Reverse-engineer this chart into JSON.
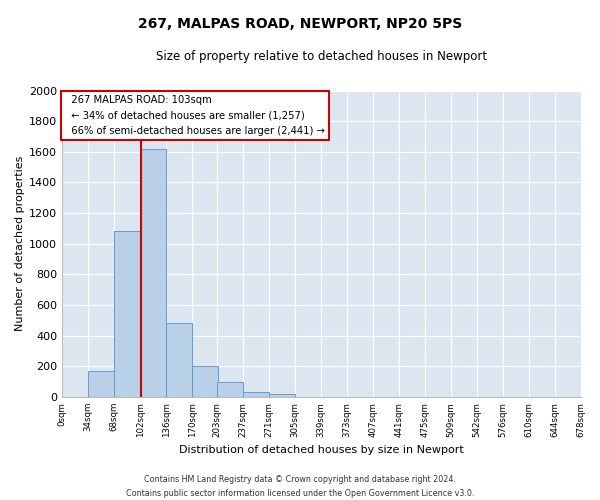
{
  "title": "267, MALPAS ROAD, NEWPORT, NP20 5PS",
  "subtitle": "Size of property relative to detached houses in Newport",
  "xlabel": "Distribution of detached houses by size in Newport",
  "ylabel": "Number of detached properties",
  "bar_color": "#b8d0e8",
  "bar_edge_color": "#6699cc",
  "fig_background_color": "#ffffff",
  "ax_background_color": "#dce6f0",
  "grid_color": "#ffffff",
  "annotation_box_edge": "#cc0000",
  "annotation_line_color": "#cc0000",
  "annotation_text_line1": "267 MALPAS ROAD: 103sqm",
  "annotation_text_line2": "← 34% of detached houses are smaller (1,257)",
  "annotation_text_line3": "66% of semi-detached houses are larger (2,441) →",
  "red_line_x": 103,
  "bins": [
    0,
    34,
    68,
    102,
    136,
    170,
    203,
    237,
    271,
    305,
    339,
    373,
    407,
    441,
    475,
    509,
    542,
    576,
    610,
    644,
    678
  ],
  "counts": [
    0,
    170,
    1080,
    1620,
    480,
    200,
    100,
    35,
    20,
    0,
    0,
    0,
    0,
    0,
    0,
    0,
    0,
    0,
    0,
    0
  ],
  "ylim": [
    0,
    2000
  ],
  "yticks": [
    0,
    200,
    400,
    600,
    800,
    1000,
    1200,
    1400,
    1600,
    1800,
    2000
  ],
  "xtick_labels": [
    "0sqm",
    "34sqm",
    "68sqm",
    "102sqm",
    "136sqm",
    "170sqm",
    "203sqm",
    "237sqm",
    "271sqm",
    "305sqm",
    "339sqm",
    "373sqm",
    "407sqm",
    "441sqm",
    "475sqm",
    "509sqm",
    "542sqm",
    "576sqm",
    "610sqm",
    "644sqm",
    "678sqm"
  ],
  "footer_line1": "Contains HM Land Registry data © Crown copyright and database right 2024.",
  "footer_line2": "Contains public sector information licensed under the Open Government Licence v3.0."
}
